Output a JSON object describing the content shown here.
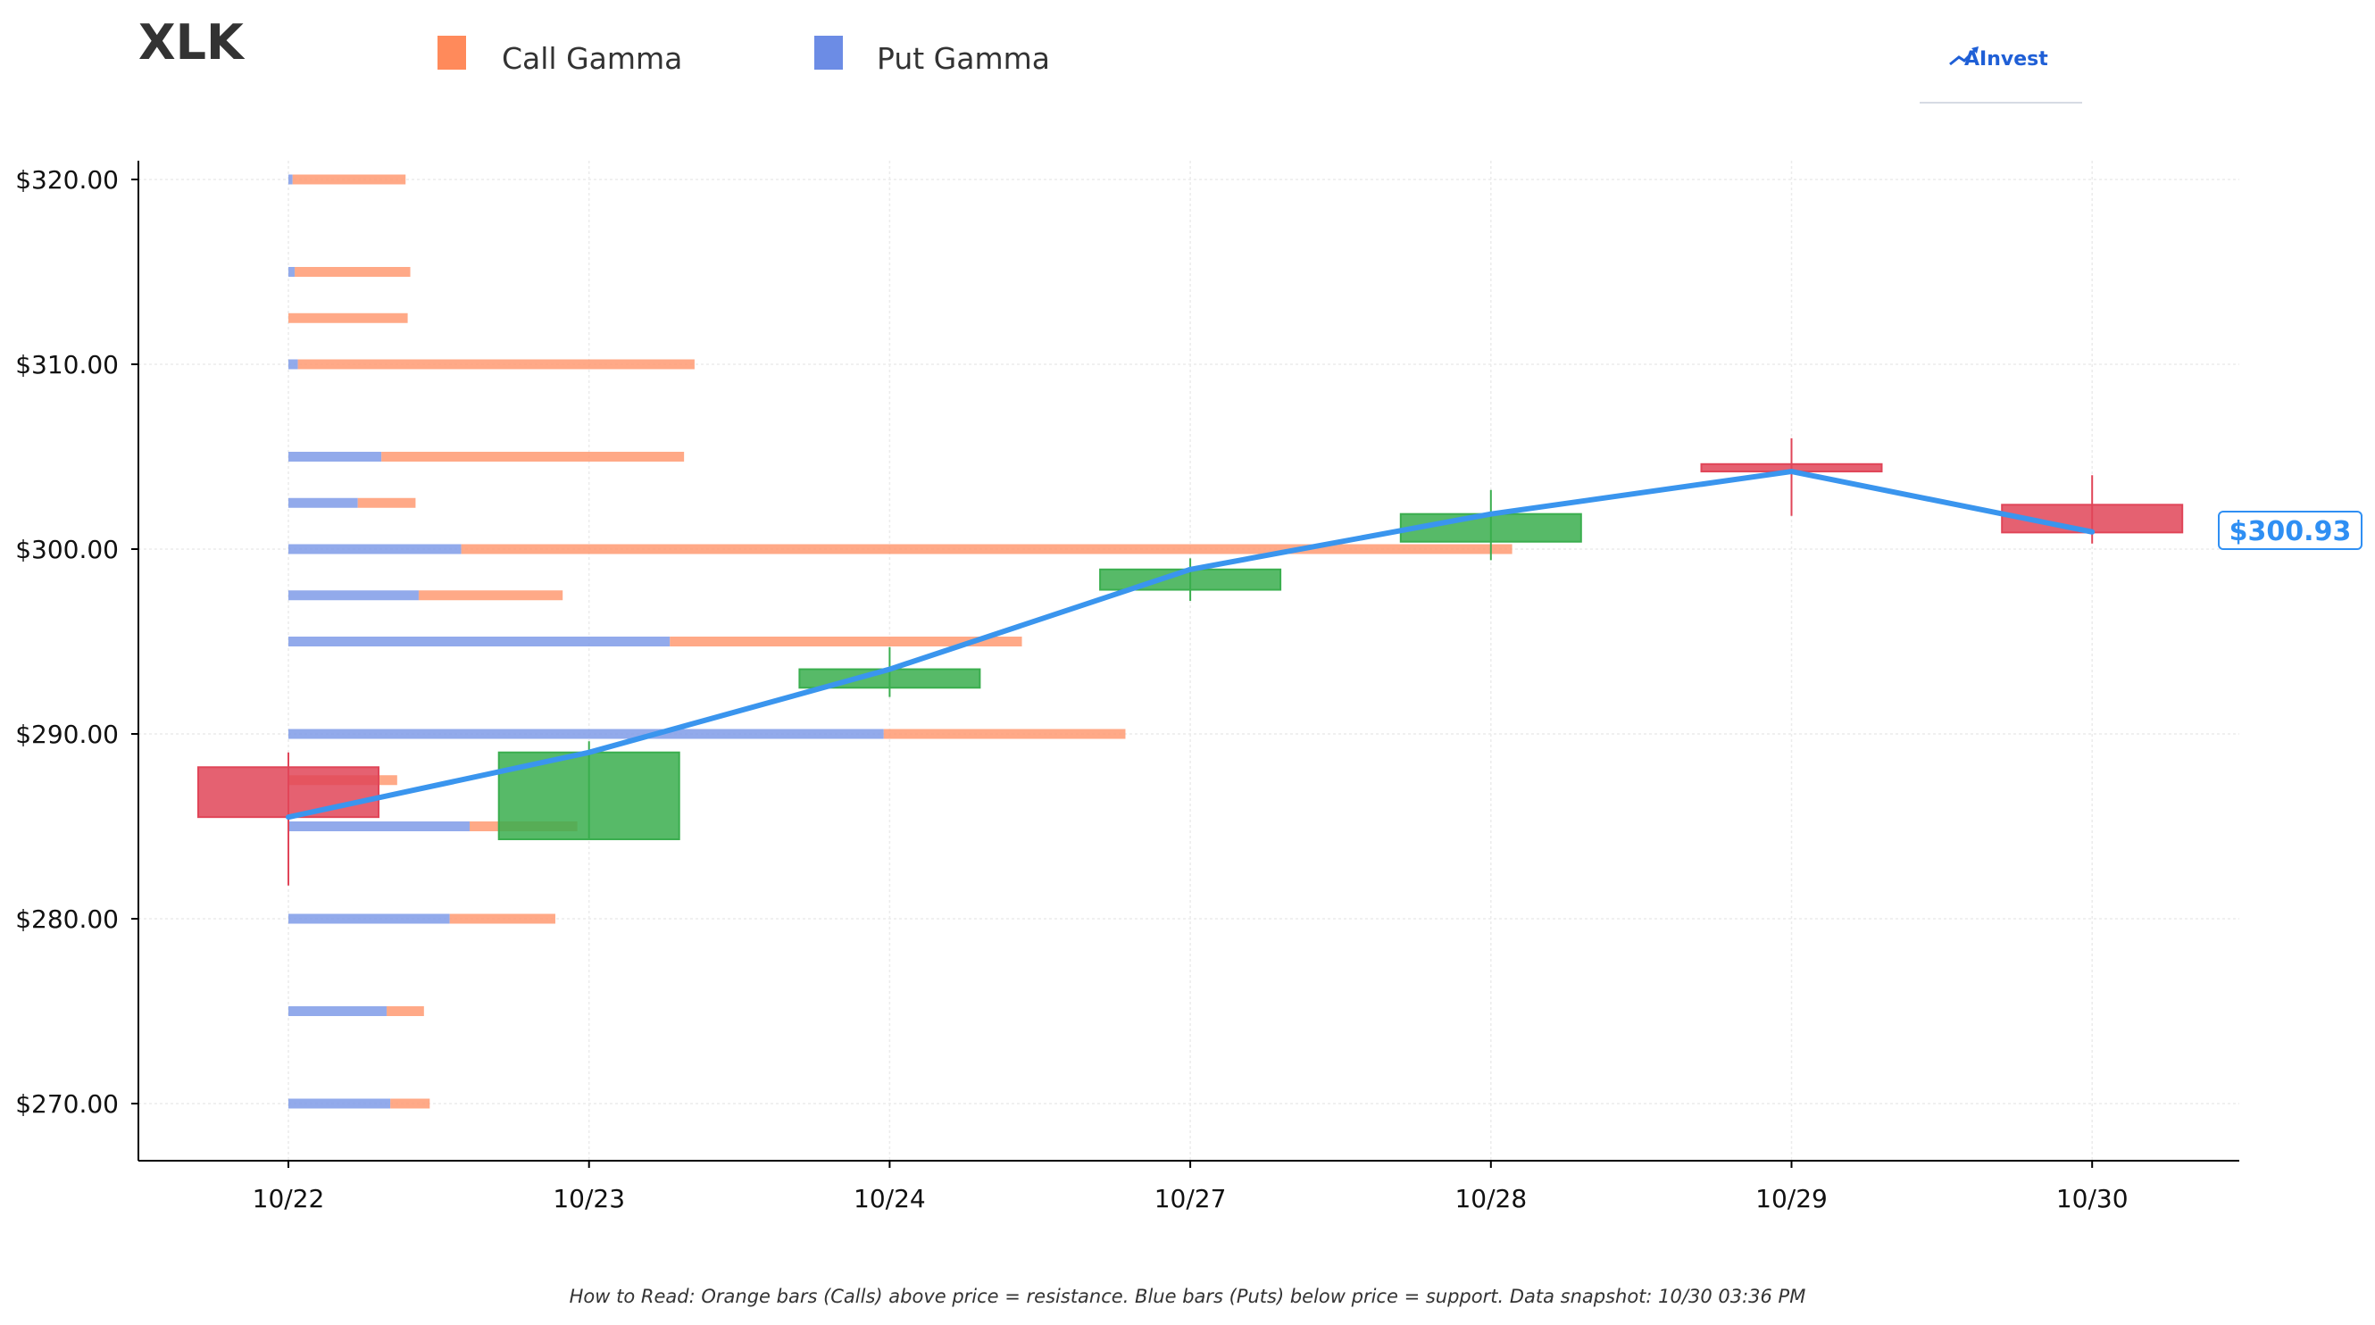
{
  "ticker": "XLK",
  "legend": [
    {
      "label": "Call Gamma",
      "color": "#ff8a5b"
    },
    {
      "label": "Put Gamma",
      "color": "#6c8ce5"
    }
  ],
  "logo_text": "AInvest",
  "current_price_label": "$300.93",
  "footer_note": "How to Read: Orange bars (Calls) above price = resistance. Blue bars (Puts) below price = support. Data snapshot: 10/30 03:36 PM",
  "colors": {
    "call": "#ff9a72",
    "put": "#7f9be8",
    "up_candle": "#3aae4e",
    "down_candle": "#e04558",
    "price_line": "#3a95ee"
  },
  "chart_data": {
    "type": "candlestick_with_gamma_bars",
    "x_categories": [
      "10/22",
      "10/23",
      "10/24",
      "10/27",
      "10/28",
      "10/29",
      "10/30"
    ],
    "y_tick_labels": [
      "$270.00",
      "$280.00",
      "$290.00",
      "$300.00",
      "$310.00",
      "$320.00"
    ],
    "y_ticks": [
      270,
      280,
      290,
      300,
      310,
      320
    ],
    "ylim": [
      266.5,
      321
    ],
    "grid": true,
    "candles": [
      {
        "date": "10/22",
        "open": 288.2,
        "close": 285.5,
        "high": 289.0,
        "low": 281.8
      },
      {
        "date": "10/23",
        "open": 284.3,
        "close": 289.0,
        "high": 289.6,
        "low": 284.3
      },
      {
        "date": "10/24",
        "open": 292.5,
        "close": 293.5,
        "high": 294.7,
        "low": 292.0
      },
      {
        "date": "10/27",
        "open": 297.8,
        "close": 298.9,
        "high": 299.5,
        "low": 297.2
      },
      {
        "date": "10/28",
        "open": 300.4,
        "close": 301.9,
        "high": 303.2,
        "low": 299.4
      },
      {
        "date": "10/29",
        "open": 304.6,
        "close": 304.2,
        "high": 306.0,
        "low": 301.8
      },
      {
        "date": "10/30",
        "open": 302.4,
        "close": 300.9,
        "high": 304.0,
        "low": 300.3
      }
    ],
    "price_line": [
      {
        "date": "10/22",
        "price": 285.5
      },
      {
        "date": "10/23",
        "price": 289.0
      },
      {
        "date": "10/24",
        "price": 293.5
      },
      {
        "date": "10/27",
        "price": 298.9
      },
      {
        "date": "10/28",
        "price": 301.9
      },
      {
        "date": "10/29",
        "price": 304.2
      },
      {
        "date": "10/30",
        "price": 300.93
      }
    ],
    "gamma_bars": [
      {
        "strike": 320,
        "put": 0.08,
        "call": 2.15
      },
      {
        "strike": 315,
        "put": 0.12,
        "call": 2.2
      },
      {
        "strike": 312.5,
        "put": 0.0,
        "call": 2.27
      },
      {
        "strike": 310,
        "put": 0.18,
        "call": 7.55
      },
      {
        "strike": 305,
        "put": 1.77,
        "call": 5.76
      },
      {
        "strike": 302.5,
        "put": 1.32,
        "call": 1.1
      },
      {
        "strike": 300,
        "put": 3.29,
        "call": 20.0
      },
      {
        "strike": 297.5,
        "put": 2.48,
        "call": 2.74
      },
      {
        "strike": 295,
        "put": 7.26,
        "call": 6.7
      },
      {
        "strike": 290,
        "put": 11.33,
        "call": 4.6
      },
      {
        "strike": 287.5,
        "put": 0.0,
        "call": 2.07
      },
      {
        "strike": 285,
        "put": 3.45,
        "call": 2.05
      },
      {
        "strike": 280,
        "put": 3.07,
        "call": 2.01
      },
      {
        "strike": 275,
        "put": 1.87,
        "call": 0.71
      },
      {
        "strike": 270,
        "put": 1.94,
        "call": 0.75
      }
    ]
  }
}
